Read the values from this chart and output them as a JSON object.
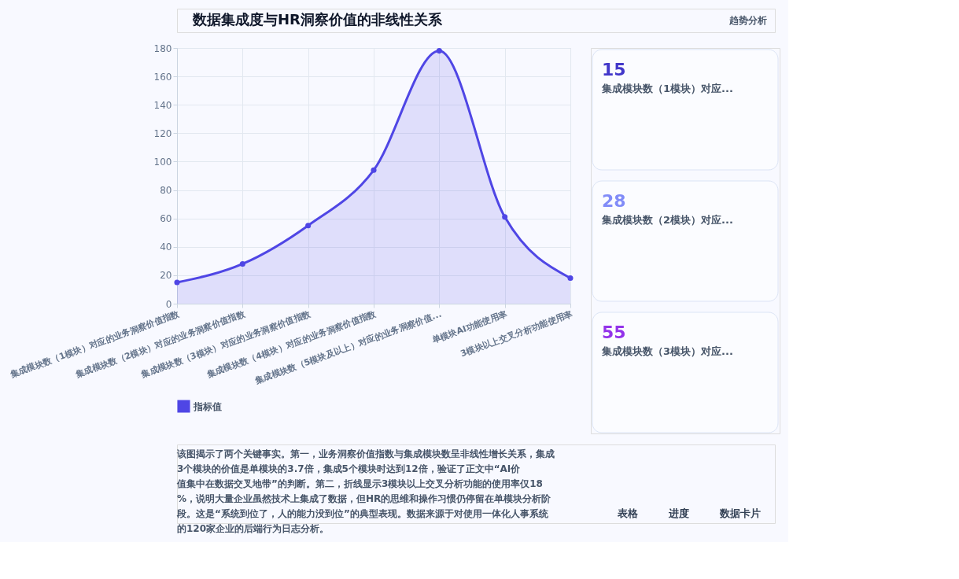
{
  "chart_data": {
    "type": "area",
    "title": "数据集成度与HR洞察价值的非线性关系",
    "categories": [
      "集成模块数（1模块）对应的业务洞察价值指数",
      "集成模块数（2模块）对应的业务洞察价值指数",
      "集成模块数（3模块）对应的业务洞察价值指数",
      "集成模块数（4模块）对应的业务洞察价值指数",
      "集成模块数（5模块及以上）对应的业务洞察价值...",
      "单模块AI功能使用率",
      "3模块以上交叉分析功能使用率"
    ],
    "series": [
      {
        "name": "指标值",
        "color": "#4f46e5",
        "values": [
          15,
          28,
          55,
          94,
          178,
          61,
          18
        ]
      }
    ],
    "ylim": [
      0,
      180
    ],
    "yticks": [
      0,
      20,
      40,
      60,
      80,
      100,
      120,
      140,
      160,
      180
    ],
    "grid": true,
    "legend": "bottom",
    "marker": "circle",
    "line_style": "solid",
    "annotations": [
      "趋势分析",
      "15",
      "集成模块数（1模块）对应...",
      "28",
      "集成模块数（2模块）对应...",
      "55",
      "集成模块数（3模块）对应...",
      "该图揭示了两个关键事实。第一，业务洞察价值指数与集成模块数呈非线性增长关系，集成3个模块的价值是单模块的3.7倍，集成5个模块时达到12倍，验证了正文中“AI价值集中在数据交叉地带”的判断。第二，折线显示3模块以上交叉分析功能的使用率仅18%，说明大量企业虽然技术上集成了数据，但HR的思维和操作习惯仍停留在单模块分析阶段。这是“系统到位了，人的能力没到位”的典型表现。数据来源于对使用一体化人事系统的120家企业的后端行为日志分析。",
      "表格",
      "进度",
      "数据卡片"
    ]
  }
}
